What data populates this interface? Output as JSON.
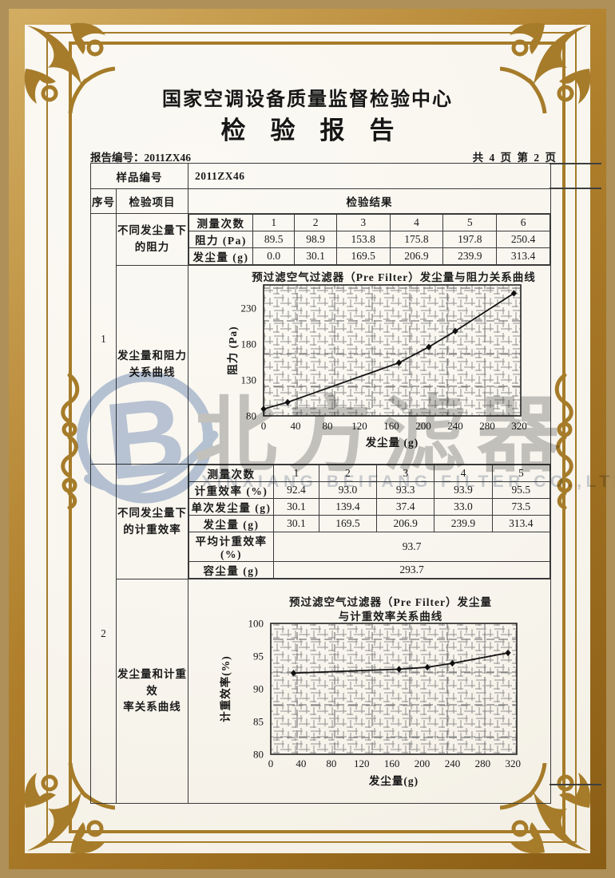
{
  "colors": {
    "frame_gold": "#a67c2a",
    "band_tan": "#ae9058",
    "paper": "#f8f5ee",
    "ink": "#1a1a1a",
    "table_line": "#3a3a3a",
    "watermark_blue": "#b9c7de",
    "watermark_gray": "#c7c7c7"
  },
  "header": {
    "center_name": "国家空调设备质量监督检验中心",
    "report_title": "检　验　报　告",
    "report_no": "报告编号：2011ZX46",
    "page_info": "共 4 页 第 2 页"
  },
  "sample": {
    "label": "样品编号",
    "value": "2011ZX46"
  },
  "columns": {
    "seq": "序号",
    "item": "检验项目",
    "result": "检验结果"
  },
  "section1": {
    "seq": "1",
    "item_rows": "不同发尘量下\n的阻力",
    "item_chart": "发尘量和阻力\n关系曲线",
    "table": {
      "rows": [
        {
          "label": "测量次数",
          "values": [
            "1",
            "2",
            "3",
            "4",
            "5",
            "6"
          ]
        },
        {
          "label": "阻力 (Pa)",
          "values": [
            "89.5",
            "98.9",
            "153.8",
            "175.8",
            "197.8",
            "250.4"
          ]
        },
        {
          "label": "发尘量 (g)",
          "values": [
            "0.0",
            "30.1",
            "169.5",
            "206.9",
            "239.9",
            "313.4"
          ]
        }
      ]
    }
  },
  "section2": {
    "seq": "2",
    "item_rows": "不同发尘量下\n的计重效率",
    "item_chart": "发尘量和计重效\n率关系曲线",
    "table": {
      "rows": [
        {
          "label": "测量次数",
          "values": [
            "1",
            "2",
            "3",
            "4",
            "5"
          ]
        },
        {
          "label": "计重效率 (%)",
          "values": [
            "92.4",
            "93.0",
            "93.3",
            "93.9",
            "95.5"
          ]
        },
        {
          "label": "单次发尘量 (g)",
          "values": [
            "30.1",
            "139.4",
            "37.4",
            "33.0",
            "73.5"
          ]
        },
        {
          "label": "发尘量 (g)",
          "values": [
            "30.1",
            "169.5",
            "206.9",
            "239.9",
            "313.4"
          ]
        },
        {
          "label": "平均计重效率 (%)",
          "merged": "93.7"
        },
        {
          "label": "容尘量 (g)",
          "merged": "293.7"
        }
      ]
    }
  },
  "watermark": {
    "logo_letter": "B",
    "cn": "北方滤器",
    "en": "XINXIANG BEIFANG FILTER CO.,LTD"
  },
  "chart_data": [
    {
      "type": "line",
      "title": "预过滤空气过滤器（Pre Filter）发尘量与阻力关系曲线",
      "xlabel": "发尘量 (g)",
      "ylabel": "阻力 (Pa)",
      "x": [
        0,
        30.1,
        169.5,
        206.9,
        239.9,
        313.4
      ],
      "y": [
        89.5,
        98.9,
        153.8,
        175.8,
        197.8,
        250.4
      ],
      "xticks": [
        0,
        40,
        80,
        120,
        160,
        200,
        240,
        280,
        320
      ],
      "yticks": [
        80,
        130,
        180,
        230
      ],
      "xlim": [
        0,
        322
      ],
      "ylim": [
        80,
        262
      ],
      "grid": true,
      "legend": "none",
      "marker": "diamond"
    },
    {
      "type": "line",
      "title": "预过滤空气过滤器（Pre Filter）发尘量\n与计重效率关系曲线",
      "xlabel": "发尘量(g)",
      "ylabel": "计重效率(%)",
      "x": [
        30.1,
        169.5,
        206.9,
        239.9,
        313.4
      ],
      "y": [
        92.4,
        93.0,
        93.3,
        93.9,
        95.5
      ],
      "xticks": [
        0,
        40,
        80,
        120,
        160,
        200,
        240,
        280,
        320
      ],
      "yticks": [
        80,
        85,
        90,
        95,
        100
      ],
      "xlim": [
        0,
        325
      ],
      "ylim": [
        80,
        100
      ],
      "grid": true,
      "legend": "none",
      "marker": "diamond"
    }
  ]
}
